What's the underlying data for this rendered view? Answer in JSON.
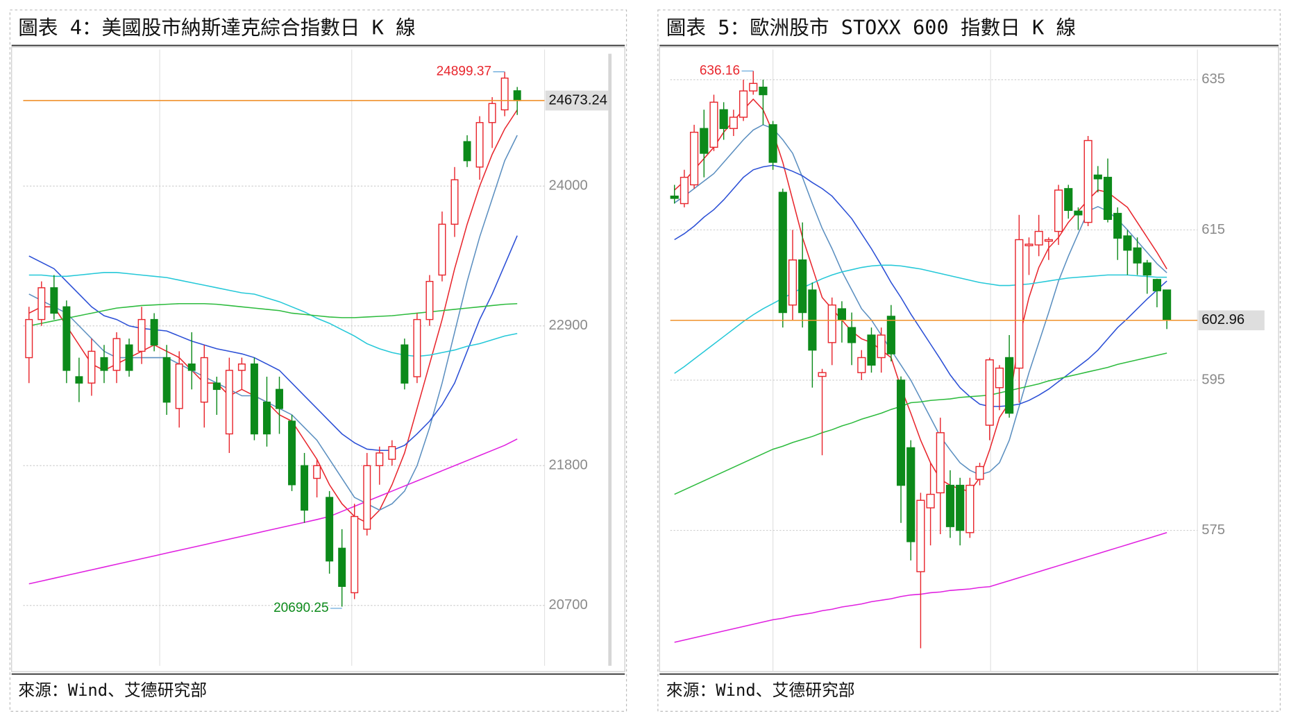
{
  "chart_data": [
    {
      "type": "candlestick",
      "title": "圖表 4：美國股市納斯達克綜合指數日 K 線",
      "source": "來源：Wind、艾德研究部",
      "ylim": [
        20225,
        25074
      ],
      "yticks": [
        20700,
        21800,
        22900,
        24000
      ],
      "grid": true,
      "up_color": "#e8262d",
      "down_color": "#0c8a1a",
      "high": 24899.37,
      "low": 20690.25,
      "last": 24673.24,
      "last_color": "#f0912a",
      "ohlc": [
        [
          22650,
          23050,
          22450,
          22950
        ],
        [
          22950,
          23250,
          22900,
          23200
        ],
        [
          23200,
          23300,
          22950,
          23000
        ],
        [
          23050,
          23100,
          22450,
          22550
        ],
        [
          22500,
          22650,
          22300,
          22450
        ],
        [
          22450,
          22800,
          22350,
          22700
        ],
        [
          22650,
          22750,
          22450,
          22550
        ],
        [
          22550,
          22850,
          22450,
          22800
        ],
        [
          22750,
          22800,
          22500,
          22550
        ],
        [
          22700,
          23050,
          22600,
          22950
        ],
        [
          22950,
          23000,
          22700,
          22750
        ],
        [
          22650,
          22750,
          22200,
          22300
        ],
        [
          22250,
          22700,
          22100,
          22600
        ],
        [
          22600,
          22850,
          22400,
          22550
        ],
        [
          22300,
          22750,
          22100,
          22650
        ],
        [
          22450,
          22500,
          22200,
          22400
        ],
        [
          22050,
          22650,
          21900,
          22550
        ],
        [
          22550,
          22650,
          22400,
          22600
        ],
        [
          22600,
          22650,
          22000,
          22050
        ],
        [
          22300,
          22500,
          21950,
          22050
        ],
        [
          22400,
          22500,
          22050,
          22250
        ],
        [
          22150,
          22200,
          21600,
          21650
        ],
        [
          21800,
          21900,
          21350,
          21450
        ],
        [
          21700,
          21850,
          21550,
          21800
        ],
        [
          21550,
          21600,
          20950,
          21050
        ],
        [
          21150,
          21300,
          20690.25,
          20850
        ],
        [
          20800,
          21500,
          20750,
          21400
        ],
        [
          21300,
          21900,
          21250,
          21800
        ],
        [
          21800,
          21950,
          21650,
          21900
        ],
        [
          21850,
          22000,
          21800,
          21950
        ],
        [
          22750,
          22800,
          22400,
          22450
        ],
        [
          22500,
          23000,
          22450,
          22950
        ],
        [
          22950,
          23300,
          22900,
          23250
        ],
        [
          23300,
          23800,
          23250,
          23700
        ],
        [
          23700,
          24150,
          23600,
          24050
        ],
        [
          24350,
          24400,
          24150,
          24200
        ],
        [
          24150,
          24550,
          24050,
          24500
        ],
        [
          24500,
          24700,
          24300,
          24650
        ],
        [
          24600,
          24899.37,
          24550,
          24850
        ],
        [
          24750,
          24780,
          24560,
          24673.24
        ]
      ],
      "series": [
        {
          "color": "#e8262d",
          "values": [
            23000,
            23050,
            23050,
            22900,
            22750,
            22600,
            22550,
            22600,
            22650,
            22700,
            22750,
            22700,
            22650,
            22550,
            22450,
            22450,
            22350,
            22400,
            22350,
            22300,
            22200,
            22150,
            22000,
            21850,
            21650,
            21500,
            21400,
            21350,
            21450,
            21650,
            21900,
            22250,
            22600,
            22950,
            23350,
            23700,
            24000,
            24250,
            24450,
            24600
          ]
        },
        {
          "color": "#5b8fc0",
          "values": [
            23150,
            23100,
            23050,
            23000,
            22900,
            22800,
            22700,
            22650,
            22650,
            22650,
            22650,
            22650,
            22600,
            22550,
            22500,
            22450,
            22400,
            22350,
            22350,
            22300,
            22250,
            22200,
            22100,
            22000,
            21850,
            21700,
            21550,
            21500,
            21450,
            21500,
            21600,
            21800,
            22100,
            22450,
            22850,
            23250,
            23600,
            23900,
            24200,
            24400
          ]
        },
        {
          "color": "#2b4fd6",
          "values": [
            23450,
            23400,
            23350,
            23250,
            23150,
            23050,
            22980,
            22950,
            22900,
            22880,
            22870,
            22860,
            22820,
            22780,
            22750,
            22720,
            22700,
            22680,
            22650,
            22600,
            22550,
            22450,
            22350,
            22250,
            22150,
            22050,
            21980,
            21930,
            21920,
            21920,
            21960,
            22050,
            22150,
            22280,
            22450,
            22700,
            22950,
            23150,
            23380,
            23610
          ]
        },
        {
          "color": "#25c8d8",
          "values": [
            23300,
            23300,
            23290,
            23290,
            23300,
            23310,
            23320,
            23320,
            23310,
            23300,
            23290,
            23280,
            23260,
            23240,
            23220,
            23200,
            23180,
            23160,
            23150,
            23120,
            23090,
            23050,
            23010,
            22960,
            22920,
            22870,
            22820,
            22760,
            22720,
            22690,
            22670,
            22660,
            22670,
            22690,
            22710,
            22740,
            22760,
            22790,
            22820,
            22840
          ]
        },
        {
          "color": "#2dbb3e",
          "values": [
            22900,
            22920,
            22940,
            22960,
            22980,
            23000,
            23020,
            23040,
            23050,
            23060,
            23065,
            23070,
            23075,
            23075,
            23075,
            23070,
            23060,
            23050,
            23040,
            23030,
            23020,
            23000,
            22990,
            22980,
            22970,
            22965,
            22965,
            22970,
            22975,
            22980,
            22990,
            23000,
            23010,
            23020,
            23030,
            23040,
            23050,
            23060,
            23070,
            23075
          ]
        },
        {
          "color": "#e020e0",
          "values": [
            20870,
            20892,
            20914,
            20936,
            20958,
            20980,
            21002,
            21024,
            21046,
            21068,
            21090,
            21112,
            21134,
            21156,
            21178,
            21200,
            21222,
            21244,
            21266,
            21288,
            21310,
            21332,
            21354,
            21376,
            21400,
            21440,
            21480,
            21520,
            21560,
            21600,
            21640,
            21680,
            21720,
            21760,
            21800,
            21840,
            21880,
            21920,
            21960,
            22010
          ]
        }
      ]
    },
    {
      "type": "candlestick",
      "title": "圖表 5：歐洲股市 STOXX 600 指數日 K 線",
      "source": "來源：Wind、艾德研究部",
      "ylim": [
        556.2,
        639
      ],
      "yticks": [
        575,
        595,
        615,
        635
      ],
      "grid": true,
      "up_color": "#e8262d",
      "down_color": "#0c8a1a",
      "high": 636.16,
      "last": 602.96,
      "last_color": "#f0912a",
      "ohlc": [
        [
          619.5,
          621,
          618.5,
          619.2
        ],
        [
          618.5,
          623,
          618,
          622
        ],
        [
          621,
          629,
          620.5,
          628
        ],
        [
          628.5,
          631,
          622,
          625.2
        ],
        [
          626,
          633,
          625.5,
          632
        ],
        [
          631,
          632,
          627,
          628.5
        ],
        [
          628.5,
          631,
          627.5,
          630
        ],
        [
          630,
          635,
          629.5,
          633.5
        ],
        [
          633.5,
          636.16,
          633,
          634.5
        ],
        [
          634,
          635,
          629,
          633
        ],
        [
          629,
          629.5,
          623,
          624
        ],
        [
          620,
          620.5,
          602,
          604
        ],
        [
          605,
          615,
          603,
          611
        ],
        [
          611,
          616,
          602,
          604
        ],
        [
          607,
          608,
          594,
          599
        ],
        [
          595.5,
          596.5,
          585,
          596
        ],
        [
          600,
          606,
          597,
          605
        ],
        [
          604.5,
          605.5,
          600,
          603
        ],
        [
          602,
          604,
          597,
          600
        ],
        [
          596,
          599,
          595,
          598
        ],
        [
          601,
          602,
          596,
          597
        ],
        [
          598,
          602,
          596,
          601
        ],
        [
          603.5,
          605,
          597.5,
          598.5
        ],
        [
          595,
          595.5,
          576,
          581
        ],
        [
          586,
          587,
          571,
          573.5
        ],
        [
          569.5,
          580,
          559.3,
          579
        ],
        [
          578,
          584,
          573,
          579.8
        ],
        [
          580,
          590,
          574.5,
          588
        ],
        [
          581,
          583,
          574,
          575.5
        ],
        [
          581,
          582,
          573,
          575
        ],
        [
          574.7,
          582,
          574,
          581
        ],
        [
          581.8,
          584,
          581,
          583.5
        ],
        [
          589,
          598,
          587,
          597.7
        ],
        [
          594,
          597,
          591,
          596.6
        ],
        [
          598,
          601,
          590,
          590.6
        ],
        [
          596.6,
          617,
          592,
          613.7
        ],
        [
          612.9,
          614,
          609,
          613.1
        ],
        [
          613,
          617,
          611.5,
          614.8
        ],
        [
          613.5,
          614,
          611,
          613.7
        ],
        [
          614.8,
          621,
          613,
          620.3
        ],
        [
          620.5,
          621,
          616.5,
          617.6
        ],
        [
          617.5,
          618,
          615,
          617
        ],
        [
          616,
          627.5,
          615.5,
          626.9
        ],
        [
          622.3,
          623.5,
          620,
          621.8
        ],
        [
          622,
          624.5,
          616,
          616.4
        ],
        [
          617.2,
          618,
          611,
          613.9
        ],
        [
          614.2,
          615,
          609,
          612.3
        ],
        [
          612.6,
          614,
          609,
          610.6
        ],
        [
          610.6,
          611,
          606.5,
          609
        ],
        [
          608.4,
          608.5,
          604.7,
          606.9
        ],
        [
          607,
          607,
          601.8,
          602.96
        ]
      ],
      "series": [
        {
          "color": "#e8262d",
          "values": [
            620.3,
            621.5,
            623,
            624.5,
            626,
            628,
            629.5,
            631,
            632.4,
            631,
            628,
            624,
            619,
            614,
            610,
            606,
            604.5,
            603,
            601.5,
            600.5,
            600,
            599,
            598,
            594,
            590.6,
            587,
            584,
            581.8,
            581,
            580.5,
            580.2,
            582,
            585.7,
            590,
            592,
            600.5,
            606,
            610,
            612.6,
            614,
            616,
            617.5,
            619,
            620.3,
            620,
            619,
            618,
            616,
            614,
            612,
            609.8
          ]
        },
        {
          "color": "#5b8fc0",
          "values": [
            618.6,
            619.5,
            620.5,
            621.5,
            622.5,
            624,
            625.5,
            627,
            628.3,
            629,
            628.5,
            627,
            625.2,
            622,
            618.5,
            615.2,
            612.5,
            609.5,
            607,
            604.5,
            603,
            601,
            599,
            597,
            595,
            592.5,
            590,
            587.5,
            585.7,
            584,
            583,
            582.4,
            582.8,
            584,
            587,
            591.5,
            596,
            600,
            604,
            608.2,
            611.5,
            614.5,
            617.5,
            618.1,
            617.5,
            616.4,
            615,
            613.5,
            612,
            610.5,
            609.3
          ]
        },
        {
          "color": "#2b4fd6",
          "values": [
            613.7,
            614.5,
            615.5,
            616.7,
            617.7,
            619,
            620.5,
            622,
            623,
            623.4,
            623.6,
            623.3,
            622.8,
            622.2,
            621.3,
            620.5,
            619.5,
            618,
            616.5,
            614.5,
            612.5,
            610.3,
            608,
            606,
            603.8,
            601.8,
            599.8,
            597.8,
            595.7,
            594,
            592.8,
            591.8,
            591.5,
            591.5,
            591.6,
            591.8,
            592.3,
            593,
            593.8,
            594.8,
            595.8,
            596.8,
            597.8,
            599,
            600.5,
            602,
            603.2,
            604.5,
            605.8,
            607,
            608.2
          ]
        },
        {
          "color": "#25c8d8",
          "values": [
            595.9,
            596.8,
            597.8,
            598.8,
            599.8,
            600.8,
            601.8,
            602.8,
            603.7,
            604.5,
            605.2,
            605.9,
            606.6,
            607.3,
            607.9,
            608.5,
            609,
            609.4,
            609.7,
            610,
            610.2,
            610.3,
            610.3,
            610.2,
            610,
            609.8,
            609.5,
            609.2,
            608.9,
            608.6,
            608.3,
            608,
            607.8,
            607.6,
            607.6,
            607.7,
            607.8,
            608,
            608.2,
            608.4,
            608.6,
            608.7,
            608.8,
            608.9,
            609,
            609,
            609,
            608.9,
            608.8,
            608.7,
            608.7
          ]
        },
        {
          "color": "#2dbb3e",
          "values": [
            579.8,
            580.4,
            581,
            581.6,
            582.2,
            582.8,
            583.4,
            584,
            584.6,
            585.2,
            585.8,
            586.2,
            586.7,
            587.1,
            587.5,
            588,
            588.4,
            588.9,
            589.3,
            589.8,
            590.2,
            590.6,
            591.1,
            591.5,
            592,
            592.1,
            592.3,
            592.4,
            592.5,
            592.7,
            592.8,
            592.9,
            593,
            593.3,
            593.6,
            593.9,
            594.2,
            594.5,
            594.9,
            595.2,
            595.5,
            595.8,
            596.1,
            596.4,
            596.7,
            597.1,
            597.4,
            597.7,
            598,
            598.3,
            598.6
          ]
        },
        {
          "color": "#e020e0",
          "values": [
            560.1,
            560.4,
            560.7,
            561,
            561.3,
            561.6,
            561.9,
            562.2,
            562.5,
            562.8,
            563.1,
            563.3,
            563.6,
            563.8,
            564,
            564.3,
            564.5,
            564.8,
            565,
            565.2,
            565.5,
            565.7,
            565.9,
            566.2,
            566.4,
            566.5,
            566.7,
            566.8,
            567,
            567.1,
            567.2,
            567.4,
            567.5,
            567.9,
            568.3,
            568.7,
            569.1,
            569.5,
            569.9,
            570.3,
            570.7,
            571.1,
            571.5,
            571.9,
            572.3,
            572.7,
            573.1,
            573.5,
            573.9,
            574.3,
            574.7
          ]
        }
      ]
    }
  ]
}
